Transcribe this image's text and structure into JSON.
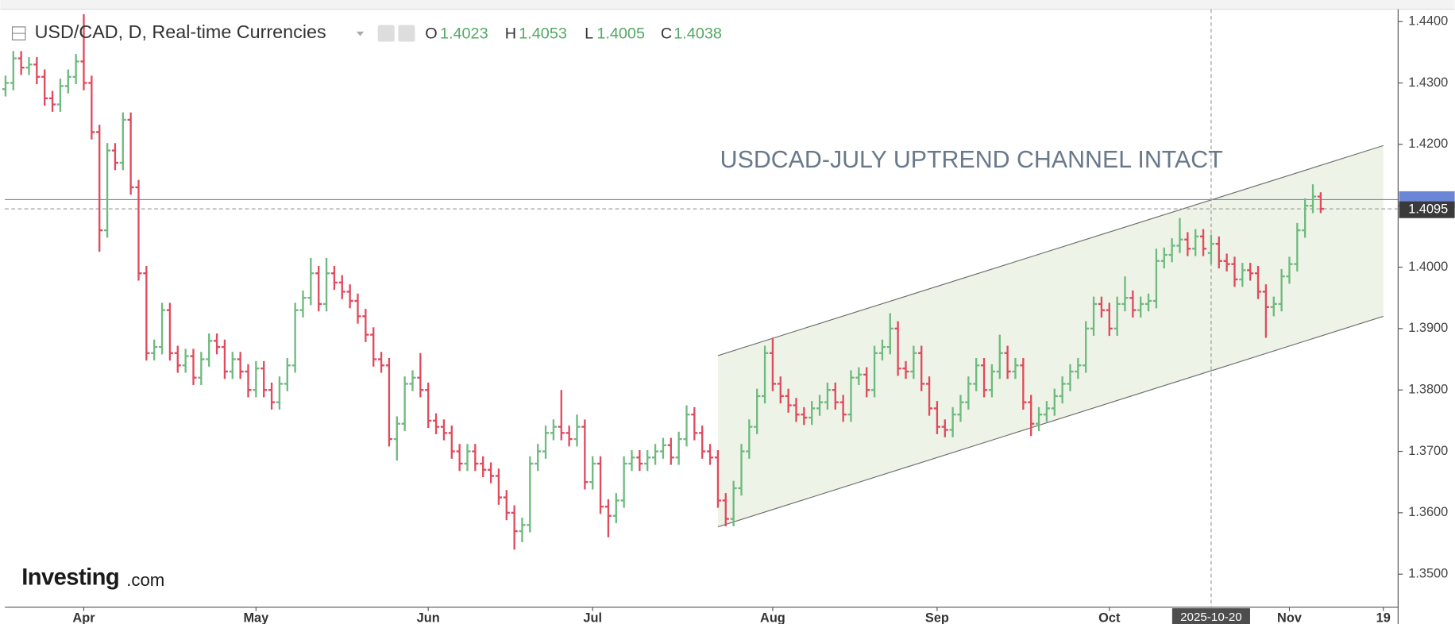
{
  "chart_data": {
    "type": "ohlc",
    "title": "USD/CAD, D, Real-time Currencies",
    "annotation": "USDCAD-JULY UPTREND CHANNEL INTACT",
    "logo": [
      "Investing",
      ".com"
    ],
    "ohlc_labels": [
      "O",
      "H",
      "L",
      "C"
    ],
    "header_index": 154,
    "up_color": "#6fba80",
    "down_color": "#e04a5e",
    "ylim": [
      1.3446,
      1.442
    ],
    "yticks": [
      {
        "value": 1.35,
        "label": "1.3500"
      },
      {
        "value": 1.36,
        "label": "1.3600"
      },
      {
        "value": 1.37,
        "label": "1.3700"
      },
      {
        "value": 1.38,
        "label": "1.3800"
      },
      {
        "value": 1.39,
        "label": "1.3900"
      },
      {
        "value": 1.4,
        "label": "1.4000"
      },
      {
        "value": 1.41,
        "label": "1.4100"
      },
      {
        "value": 1.42,
        "label": "1.4200"
      },
      {
        "value": 1.43,
        "label": "1.4300"
      },
      {
        "value": 1.44,
        "label": "1.4400"
      }
    ],
    "categories": [
      null,
      null,
      null,
      null,
      null,
      null,
      null,
      null,
      null,
      null,
      "Apr",
      null,
      null,
      null,
      null,
      null,
      null,
      null,
      null,
      null,
      null,
      null,
      null,
      null,
      null,
      null,
      null,
      null,
      null,
      null,
      null,
      null,
      "May",
      null,
      null,
      null,
      null,
      null,
      null,
      null,
      null,
      null,
      null,
      null,
      null,
      null,
      null,
      null,
      null,
      null,
      null,
      null,
      null,
      null,
      "Jun",
      null,
      null,
      null,
      null,
      null,
      null,
      null,
      null,
      null,
      null,
      null,
      null,
      null,
      null,
      null,
      null,
      null,
      null,
      null,
      null,
      "Jul",
      null,
      null,
      null,
      null,
      null,
      null,
      null,
      null,
      null,
      null,
      null,
      null,
      null,
      null,
      null,
      null,
      null,
      null,
      null,
      null,
      null,
      null,
      "Aug",
      null,
      null,
      null,
      null,
      null,
      null,
      null,
      null,
      null,
      null,
      null,
      null,
      null,
      null,
      null,
      null,
      null,
      null,
      null,
      null,
      "Sep",
      null,
      null,
      null,
      null,
      null,
      null,
      null,
      null,
      null,
      null,
      null,
      null,
      null,
      null,
      null,
      null,
      null,
      null,
      null,
      null,
      null,
      "Oct",
      null,
      null,
      null,
      null,
      null,
      null,
      null,
      null,
      null,
      null,
      null,
      null,
      null,
      null,
      null,
      null,
      null,
      null,
      null,
      null,
      null,
      null,
      "Nov",
      null,
      null,
      null,
      null,
      null,
      null,
      null,
      null,
      null,
      null,
      null,
      "19"
    ],
    "ohlc": [
      [
        1.429,
        1.4312,
        1.4278,
        1.43
      ],
      [
        1.43,
        1.4352,
        1.4288,
        1.434
      ],
      [
        1.434,
        1.4352,
        1.4313,
        1.4325
      ],
      [
        1.4325,
        1.4342,
        1.4313,
        1.433
      ],
      [
        1.433,
        1.4342,
        1.4298,
        1.431
      ],
      [
        1.431,
        1.4322,
        1.4263,
        1.4275
      ],
      [
        1.4275,
        1.4287,
        1.4253,
        1.4265
      ],
      [
        1.4265,
        1.4307,
        1.4253,
        1.4295
      ],
      [
        1.4295,
        1.4322,
        1.4283,
        1.431
      ],
      [
        1.431,
        1.4347,
        1.4298,
        1.4335
      ],
      [
        1.4335,
        1.4412,
        1.4288,
        1.43
      ],
      [
        1.43,
        1.4312,
        1.4208,
        1.422
      ],
      [
        1.422,
        1.4232,
        1.4025,
        1.406
      ],
      [
        1.406,
        1.4202,
        1.4048,
        1.419
      ],
      [
        1.419,
        1.4202,
        1.4158,
        1.417
      ],
      [
        1.417,
        1.4252,
        1.4158,
        1.424
      ],
      [
        1.424,
        1.4252,
        1.4118,
        1.413
      ],
      [
        1.413,
        1.4142,
        1.3978,
        1.399
      ],
      [
        1.399,
        1.4002,
        1.3848,
        1.386
      ],
      [
        1.386,
        1.3882,
        1.3848,
        1.387
      ],
      [
        1.387,
        1.3942,
        1.3858,
        1.393
      ],
      [
        1.393,
        1.3942,
        1.3848,
        1.386
      ],
      [
        1.386,
        1.3872,
        1.3828,
        1.384
      ],
      [
        1.384,
        1.3867,
        1.3828,
        1.3855
      ],
      [
        1.3855,
        1.3867,
        1.3808,
        1.382
      ],
      [
        1.382,
        1.3862,
        1.3808,
        1.385
      ],
      [
        1.385,
        1.3892,
        1.3838,
        1.388
      ],
      [
        1.388,
        1.3892,
        1.3858,
        1.387
      ],
      [
        1.387,
        1.3882,
        1.3818,
        1.383
      ],
      [
        1.383,
        1.3862,
        1.3818,
        1.385
      ],
      [
        1.385,
        1.3862,
        1.3818,
        1.383
      ],
      [
        1.383,
        1.3842,
        1.3788,
        1.38
      ],
      [
        1.38,
        1.3847,
        1.3788,
        1.3835
      ],
      [
        1.3835,
        1.3847,
        1.3788,
        1.38
      ],
      [
        1.38,
        1.3812,
        1.3768,
        1.378
      ],
      [
        1.378,
        1.3822,
        1.3768,
        1.381
      ],
      [
        1.381,
        1.3852,
        1.3798,
        1.384
      ],
      [
        1.384,
        1.3942,
        1.3828,
        1.393
      ],
      [
        1.393,
        1.3962,
        1.3918,
        1.395
      ],
      [
        1.395,
        1.4015,
        1.3938,
        1.399
      ],
      [
        1.399,
        1.4002,
        1.3928,
        1.394
      ],
      [
        1.394,
        1.4015,
        1.3928,
        1.399
      ],
      [
        1.399,
        1.4002,
        1.3963,
        1.3975
      ],
      [
        1.3975,
        1.3987,
        1.3948,
        1.396
      ],
      [
        1.396,
        1.3972,
        1.3933,
        1.3945
      ],
      [
        1.3945,
        1.3957,
        1.3908,
        1.392
      ],
      [
        1.392,
        1.3932,
        1.3878,
        1.389
      ],
      [
        1.389,
        1.3902,
        1.3838,
        1.385
      ],
      [
        1.385,
        1.3862,
        1.3828,
        1.384
      ],
      [
        1.384,
        1.3852,
        1.3708,
        1.372
      ],
      [
        1.372,
        1.3757,
        1.3685,
        1.3745
      ],
      [
        1.3745,
        1.3822,
        1.3733,
        1.381
      ],
      [
        1.381,
        1.3832,
        1.3798,
        1.382
      ],
      [
        1.382,
        1.386,
        1.3788,
        1.38
      ],
      [
        1.38,
        1.3812,
        1.3738,
        1.375
      ],
      [
        1.375,
        1.3762,
        1.3728,
        1.374
      ],
      [
        1.374,
        1.3752,
        1.3718,
        1.373
      ],
      [
        1.373,
        1.3742,
        1.3688,
        1.37
      ],
      [
        1.37,
        1.3712,
        1.3668,
        1.368
      ],
      [
        1.368,
        1.3712,
        1.3668,
        1.37
      ],
      [
        1.37,
        1.3712,
        1.3668,
        1.368
      ],
      [
        1.368,
        1.3692,
        1.3658,
        1.367
      ],
      [
        1.367,
        1.3682,
        1.3648,
        1.366
      ],
      [
        1.366,
        1.3672,
        1.3613,
        1.3625
      ],
      [
        1.3625,
        1.3637,
        1.3588,
        1.36
      ],
      [
        1.36,
        1.3612,
        1.354,
        1.357
      ],
      [
        1.357,
        1.3592,
        1.3552,
        1.358
      ],
      [
        1.358,
        1.3692,
        1.3568,
        1.368
      ],
      [
        1.368,
        1.3712,
        1.3668,
        1.37
      ],
      [
        1.37,
        1.3742,
        1.3688,
        1.373
      ],
      [
        1.373,
        1.3752,
        1.3718,
        1.374
      ],
      [
        1.374,
        1.38,
        1.3718,
        1.373
      ],
      [
        1.373,
        1.3742,
        1.3708,
        1.372
      ],
      [
        1.372,
        1.376,
        1.3708,
        1.374
      ],
      [
        1.374,
        1.3752,
        1.3638,
        1.365
      ],
      [
        1.365,
        1.3692,
        1.3638,
        1.368
      ],
      [
        1.368,
        1.3692,
        1.3598,
        1.361
      ],
      [
        1.361,
        1.3622,
        1.356,
        1.3595
      ],
      [
        1.3595,
        1.3632,
        1.3583,
        1.362
      ],
      [
        1.362,
        1.3692,
        1.3608,
        1.368
      ],
      [
        1.368,
        1.3702,
        1.3668,
        1.369
      ],
      [
        1.369,
        1.3702,
        1.3668,
        1.368
      ],
      [
        1.368,
        1.3702,
        1.3668,
        1.369
      ],
      [
        1.369,
        1.3712,
        1.3678,
        1.37
      ],
      [
        1.37,
        1.3722,
        1.3688,
        1.371
      ],
      [
        1.371,
        1.3722,
        1.3678,
        1.369
      ],
      [
        1.369,
        1.3732,
        1.3678,
        1.372
      ],
      [
        1.372,
        1.3775,
        1.3708,
        1.376
      ],
      [
        1.376,
        1.3772,
        1.3718,
        1.373
      ],
      [
        1.373,
        1.3742,
        1.3688,
        1.37
      ],
      [
        1.37,
        1.3712,
        1.3678,
        1.369
      ],
      [
        1.369,
        1.3702,
        1.3608,
        1.362
      ],
      [
        1.362,
        1.3632,
        1.3578,
        1.359
      ],
      [
        1.359,
        1.3652,
        1.3578,
        1.364
      ],
      [
        1.364,
        1.3712,
        1.3628,
        1.37
      ],
      [
        1.37,
        1.3752,
        1.3688,
        1.374
      ],
      [
        1.374,
        1.3802,
        1.3728,
        1.379
      ],
      [
        1.379,
        1.3872,
        1.3778,
        1.386
      ],
      [
        1.386,
        1.3885,
        1.3798,
        1.381
      ],
      [
        1.381,
        1.3822,
        1.3778,
        1.379
      ],
      [
        1.379,
        1.3802,
        1.3763,
        1.3775
      ],
      [
        1.3775,
        1.3787,
        1.3748,
        1.376
      ],
      [
        1.376,
        1.3772,
        1.3743,
        1.3755
      ],
      [
        1.3755,
        1.3782,
        1.3743,
        1.377
      ],
      [
        1.377,
        1.3792,
        1.3758,
        1.378
      ],
      [
        1.378,
        1.3812,
        1.3768,
        1.38
      ],
      [
        1.38,
        1.3812,
        1.3768,
        1.378
      ],
      [
        1.378,
        1.3792,
        1.3748,
        1.376
      ],
      [
        1.376,
        1.3832,
        1.3748,
        1.382
      ],
      [
        1.382,
        1.3837,
        1.3808,
        1.3825
      ],
      [
        1.3825,
        1.3837,
        1.3788,
        1.38
      ],
      [
        1.38,
        1.3872,
        1.3788,
        1.386
      ],
      [
        1.386,
        1.3882,
        1.3848,
        1.387
      ],
      [
        1.387,
        1.3925,
        1.3858,
        1.39
      ],
      [
        1.39,
        1.3912,
        1.3823,
        1.3835
      ],
      [
        1.3835,
        1.3847,
        1.3818,
        1.383
      ],
      [
        1.383,
        1.3872,
        1.3818,
        1.386
      ],
      [
        1.386,
        1.3872,
        1.3798,
        1.381
      ],
      [
        1.381,
        1.3822,
        1.3758,
        1.377
      ],
      [
        1.377,
        1.3782,
        1.3728,
        1.374
      ],
      [
        1.374,
        1.3752,
        1.3723,
        1.3735
      ],
      [
        1.3735,
        1.3772,
        1.3723,
        1.376
      ],
      [
        1.376,
        1.3792,
        1.3748,
        1.378
      ],
      [
        1.378,
        1.3822,
        1.3768,
        1.381
      ],
      [
        1.381,
        1.3852,
        1.3798,
        1.384
      ],
      [
        1.384,
        1.3852,
        1.3788,
        1.38
      ],
      [
        1.38,
        1.3842,
        1.3788,
        1.383
      ],
      [
        1.383,
        1.389,
        1.3818,
        1.386
      ],
      [
        1.386,
        1.3872,
        1.3818,
        1.383
      ],
      [
        1.383,
        1.3852,
        1.3818,
        1.384
      ],
      [
        1.384,
        1.3852,
        1.3768,
        1.378
      ],
      [
        1.378,
        1.3792,
        1.3725,
        1.3745
      ],
      [
        1.3745,
        1.3772,
        1.3733,
        1.376
      ],
      [
        1.376,
        1.3782,
        1.3748,
        1.377
      ],
      [
        1.377,
        1.3802,
        1.3758,
        1.379
      ],
      [
        1.379,
        1.3822,
        1.3778,
        1.381
      ],
      [
        1.381,
        1.3842,
        1.3798,
        1.383
      ],
      [
        1.383,
        1.3852,
        1.3818,
        1.384
      ],
      [
        1.384,
        1.3912,
        1.3828,
        1.39
      ],
      [
        1.39,
        1.3952,
        1.3888,
        1.394
      ],
      [
        1.394,
        1.3952,
        1.3918,
        1.393
      ],
      [
        1.393,
        1.3942,
        1.3888,
        1.39
      ],
      [
        1.39,
        1.3952,
        1.3888,
        1.394
      ],
      [
        1.394,
        1.3985,
        1.3928,
        1.395
      ],
      [
        1.395,
        1.3962,
        1.3918,
        1.393
      ],
      [
        1.393,
        1.3952,
        1.3918,
        1.394
      ],
      [
        1.394,
        1.3957,
        1.3928,
        1.3945
      ],
      [
        1.3945,
        1.403,
        1.3933,
        1.401
      ],
      [
        1.401,
        1.4032,
        1.3998,
        1.402
      ],
      [
        1.402,
        1.4047,
        1.4008,
        1.4035
      ],
      [
        1.4035,
        1.408,
        1.4023,
        1.4045
      ],
      [
        1.4045,
        1.4057,
        1.4018,
        1.403
      ],
      [
        1.403,
        1.4062,
        1.4018,
        1.405
      ],
      [
        1.405,
        1.4062,
        1.4018,
        1.403
      ],
      [
        1.4023,
        1.4053,
        1.4005,
        1.4038
      ],
      [
        1.4038,
        1.405,
        1.3998,
        1.401
      ],
      [
        1.401,
        1.4022,
        1.3993,
        1.4005
      ],
      [
        1.4005,
        1.4017,
        1.3968,
        1.398
      ],
      [
        1.398,
        1.4007,
        1.3968,
        1.3995
      ],
      [
        1.3995,
        1.4007,
        1.3978,
        1.399
      ],
      [
        1.399,
        1.4002,
        1.3948,
        1.396
      ],
      [
        1.396,
        1.3972,
        1.3885,
        1.3935
      ],
      [
        1.3935,
        1.3952,
        1.392,
        1.394
      ],
      [
        1.394,
        1.3997,
        1.3928,
        1.3985
      ],
      [
        1.3985,
        1.4017,
        1.3973,
        1.4005
      ],
      [
        1.4005,
        1.4072,
        1.3993,
        1.406
      ],
      [
        1.406,
        1.4112,
        1.4048,
        1.41
      ],
      [
        1.41,
        1.4135,
        1.4088,
        1.4115
      ],
      [
        1.4115,
        1.4122,
        1.4088,
        1.4095
      ],
      null,
      null,
      null,
      null,
      null,
      null,
      null,
      null
    ],
    "channel": {
      "x": [
        91,
        176
      ],
      "upper": [
        1.3856,
        1.4198
      ],
      "lower": [
        1.3577,
        1.392
      ],
      "fill": "#eef3e7",
      "line_color": "#6e6e6e"
    },
    "crosshair": {
      "index": 154,
      "label": "2025-10-20"
    },
    "price_line": {
      "value": 1.411,
      "color": "#6b86d6"
    },
    "last_price": {
      "value": 1.4095,
      "color": "#3a3a3a"
    }
  }
}
